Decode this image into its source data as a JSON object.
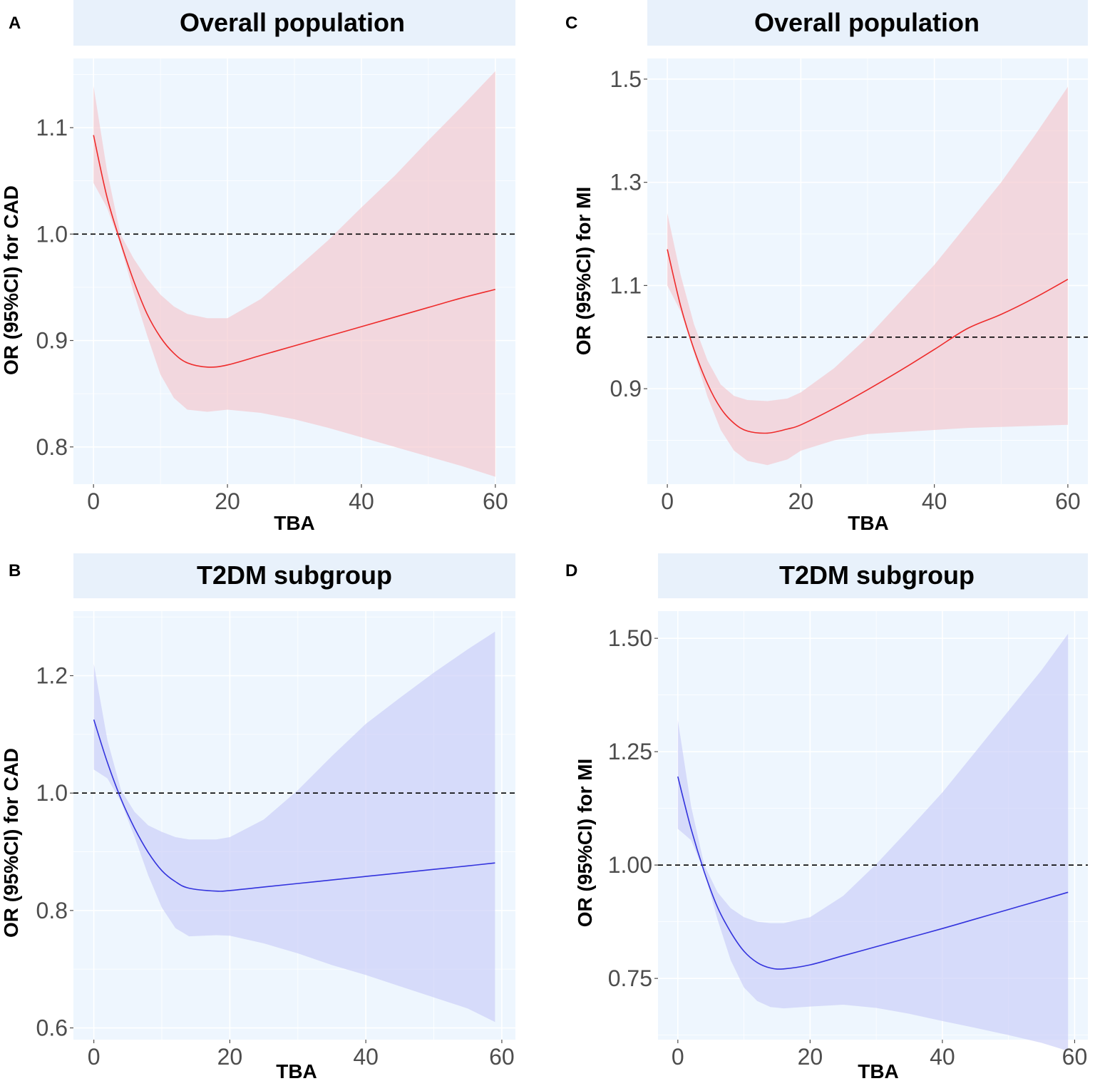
{
  "chart_data": [
    {
      "panel": "A",
      "type": "line",
      "title": "Overall population",
      "xlabel": "TBA",
      "ylabel": "OR (95%CI) for CAD",
      "xlim": [
        -3,
        63
      ],
      "ylim": [
        0.765,
        1.165
      ],
      "x_ticks": [
        0,
        20,
        40,
        60
      ],
      "x_tick_labels": [
        "0",
        "20",
        "40",
        "60"
      ],
      "y_ticks": [
        0.8,
        0.9,
        1.0,
        1.1
      ],
      "y_tick_labels": [
        "0.8",
        "0.9",
        "1.0",
        "1.1"
      ],
      "reference_y": 1.0,
      "color": "#ee2b2b",
      "band_color": "#f4c6cc",
      "series": [
        {
          "name": "OR",
          "x": [
            0,
            2,
            4,
            6,
            8,
            10,
            12,
            14,
            17,
            20,
            25,
            30,
            35,
            40,
            45,
            50,
            55,
            60
          ],
          "y": [
            1.093,
            1.035,
            0.993,
            0.956,
            0.925,
            0.903,
            0.888,
            0.879,
            0.875,
            0.877,
            0.886,
            0.895,
            0.904,
            0.913,
            0.922,
            0.931,
            0.94,
            0.948
          ],
          "lower": [
            1.048,
            1.025,
            0.99,
            0.945,
            0.905,
            0.868,
            0.846,
            0.835,
            0.833,
            0.835,
            0.832,
            0.826,
            0.818,
            0.809,
            0.8,
            0.791,
            0.782,
            0.772
          ],
          "upper": [
            1.139,
            1.06,
            1.0,
            0.977,
            0.958,
            0.943,
            0.932,
            0.925,
            0.921,
            0.921,
            0.939,
            0.966,
            0.994,
            1.025,
            1.055,
            1.088,
            1.12,
            1.153
          ]
        }
      ]
    },
    {
      "panel": "B",
      "type": "line",
      "title": "T2DM subgroup",
      "xlabel": "TBA",
      "ylabel": "OR (95%CI) for CAD",
      "xlim": [
        -3,
        62
      ],
      "ylim": [
        0.58,
        1.31
      ],
      "x_ticks": [
        0,
        20,
        40,
        60
      ],
      "x_tick_labels": [
        "0",
        "20",
        "40",
        "60"
      ],
      "y_ticks": [
        0.6,
        0.8,
        1.0,
        1.2
      ],
      "y_tick_labels": [
        "0.6",
        "0.8",
        "1.0",
        "1.2"
      ],
      "reference_y": 1.0,
      "color": "#3333dd",
      "band_color": "#c9ccf7",
      "series": [
        {
          "name": "OR",
          "x": [
            0,
            2,
            4,
            6,
            8,
            10,
            12,
            14,
            18,
            20,
            25,
            30,
            35,
            40,
            45,
            50,
            55,
            59
          ],
          "y": [
            1.125,
            1.052,
            0.99,
            0.94,
            0.899,
            0.868,
            0.849,
            0.838,
            0.833,
            0.834,
            0.84,
            0.846,
            0.852,
            0.858,
            0.864,
            0.87,
            0.876,
            0.881
          ],
          "lower": [
            1.04,
            1.025,
            0.985,
            0.925,
            0.86,
            0.805,
            0.77,
            0.756,
            0.758,
            0.757,
            0.744,
            0.727,
            0.707,
            0.69,
            0.671,
            0.652,
            0.633,
            0.61
          ],
          "upper": [
            1.22,
            1.09,
            1.005,
            0.968,
            0.945,
            0.934,
            0.925,
            0.921,
            0.921,
            0.925,
            0.955,
            1.005,
            1.063,
            1.118,
            1.162,
            1.205,
            1.245,
            1.275
          ]
        }
      ]
    },
    {
      "panel": "C",
      "type": "line",
      "title": "Overall population",
      "xlabel": "TBA",
      "ylabel": "OR (95%CI) for MI",
      "xlim": [
        -3,
        63
      ],
      "ylim": [
        0.715,
        1.54
      ],
      "x_ticks": [
        0,
        20,
        40,
        60
      ],
      "x_tick_labels": [
        "0",
        "20",
        "40",
        "60"
      ],
      "y_ticks": [
        0.9,
        1.1,
        1.3,
        1.5
      ],
      "y_tick_labels": [
        "0.9",
        "1.1",
        "1.3",
        "1.5"
      ],
      "reference_y": 1.0,
      "color": "#ee2b2b",
      "band_color": "#f4c6cc",
      "series": [
        {
          "name": "OR",
          "x": [
            0,
            2,
            4,
            6,
            8,
            10,
            12,
            15,
            18,
            20,
            25,
            30,
            35,
            40,
            45,
            50,
            55,
            60
          ],
          "y": [
            1.17,
            1.06,
            0.976,
            0.91,
            0.862,
            0.833,
            0.818,
            0.814,
            0.822,
            0.83,
            0.862,
            0.898,
            0.936,
            0.976,
            1.017,
            1.044,
            1.076,
            1.112
          ],
          "lower": [
            1.1,
            1.05,
            0.97,
            0.885,
            0.82,
            0.78,
            0.76,
            0.752,
            0.763,
            0.78,
            0.8,
            0.812,
            0.816,
            0.82,
            0.824,
            0.826,
            0.828,
            0.83
          ],
          "upper": [
            1.24,
            1.12,
            1.025,
            0.955,
            0.908,
            0.886,
            0.878,
            0.876,
            0.881,
            0.893,
            0.94,
            1.0,
            1.07,
            1.14,
            1.22,
            1.3,
            1.39,
            1.485
          ]
        }
      ]
    },
    {
      "panel": "D",
      "type": "line",
      "title": "T2DM subgroup",
      "xlabel": "TBA",
      "ylabel": "OR (95%CI) for MI",
      "xlim": [
        -3,
        62
      ],
      "ylim": [
        0.615,
        1.56
      ],
      "x_ticks": [
        0,
        20,
        40,
        60
      ],
      "x_tick_labels": [
        "0",
        "20",
        "40",
        "60"
      ],
      "y_ticks": [
        0.75,
        1.0,
        1.25,
        1.5
      ],
      "y_tick_labels": [
        "0.75",
        "1.00",
        "1.25",
        "1.50"
      ],
      "reference_y": 1.0,
      "color": "#3333dd",
      "band_color": "#c9ccf7",
      "series": [
        {
          "name": "OR",
          "x": [
            0,
            2,
            4,
            6,
            8,
            10,
            12,
            14,
            16,
            20,
            25,
            30,
            35,
            40,
            45,
            50,
            55,
            59
          ],
          "y": [
            1.195,
            1.08,
            0.985,
            0.907,
            0.852,
            0.81,
            0.785,
            0.773,
            0.771,
            0.78,
            0.8,
            0.82,
            0.84,
            0.86,
            0.881,
            0.902,
            0.923,
            0.94
          ],
          "lower": [
            1.08,
            1.055,
            0.985,
            0.88,
            0.79,
            0.73,
            0.7,
            0.687,
            0.684,
            0.688,
            0.692,
            0.685,
            0.672,
            0.656,
            0.641,
            0.625,
            0.608,
            0.59
          ],
          "upper": [
            1.32,
            1.13,
            1.0,
            0.94,
            0.905,
            0.885,
            0.875,
            0.872,
            0.872,
            0.885,
            0.932,
            1.002,
            1.08,
            1.16,
            1.25,
            1.34,
            1.43,
            1.51
          ]
        }
      ]
    }
  ]
}
